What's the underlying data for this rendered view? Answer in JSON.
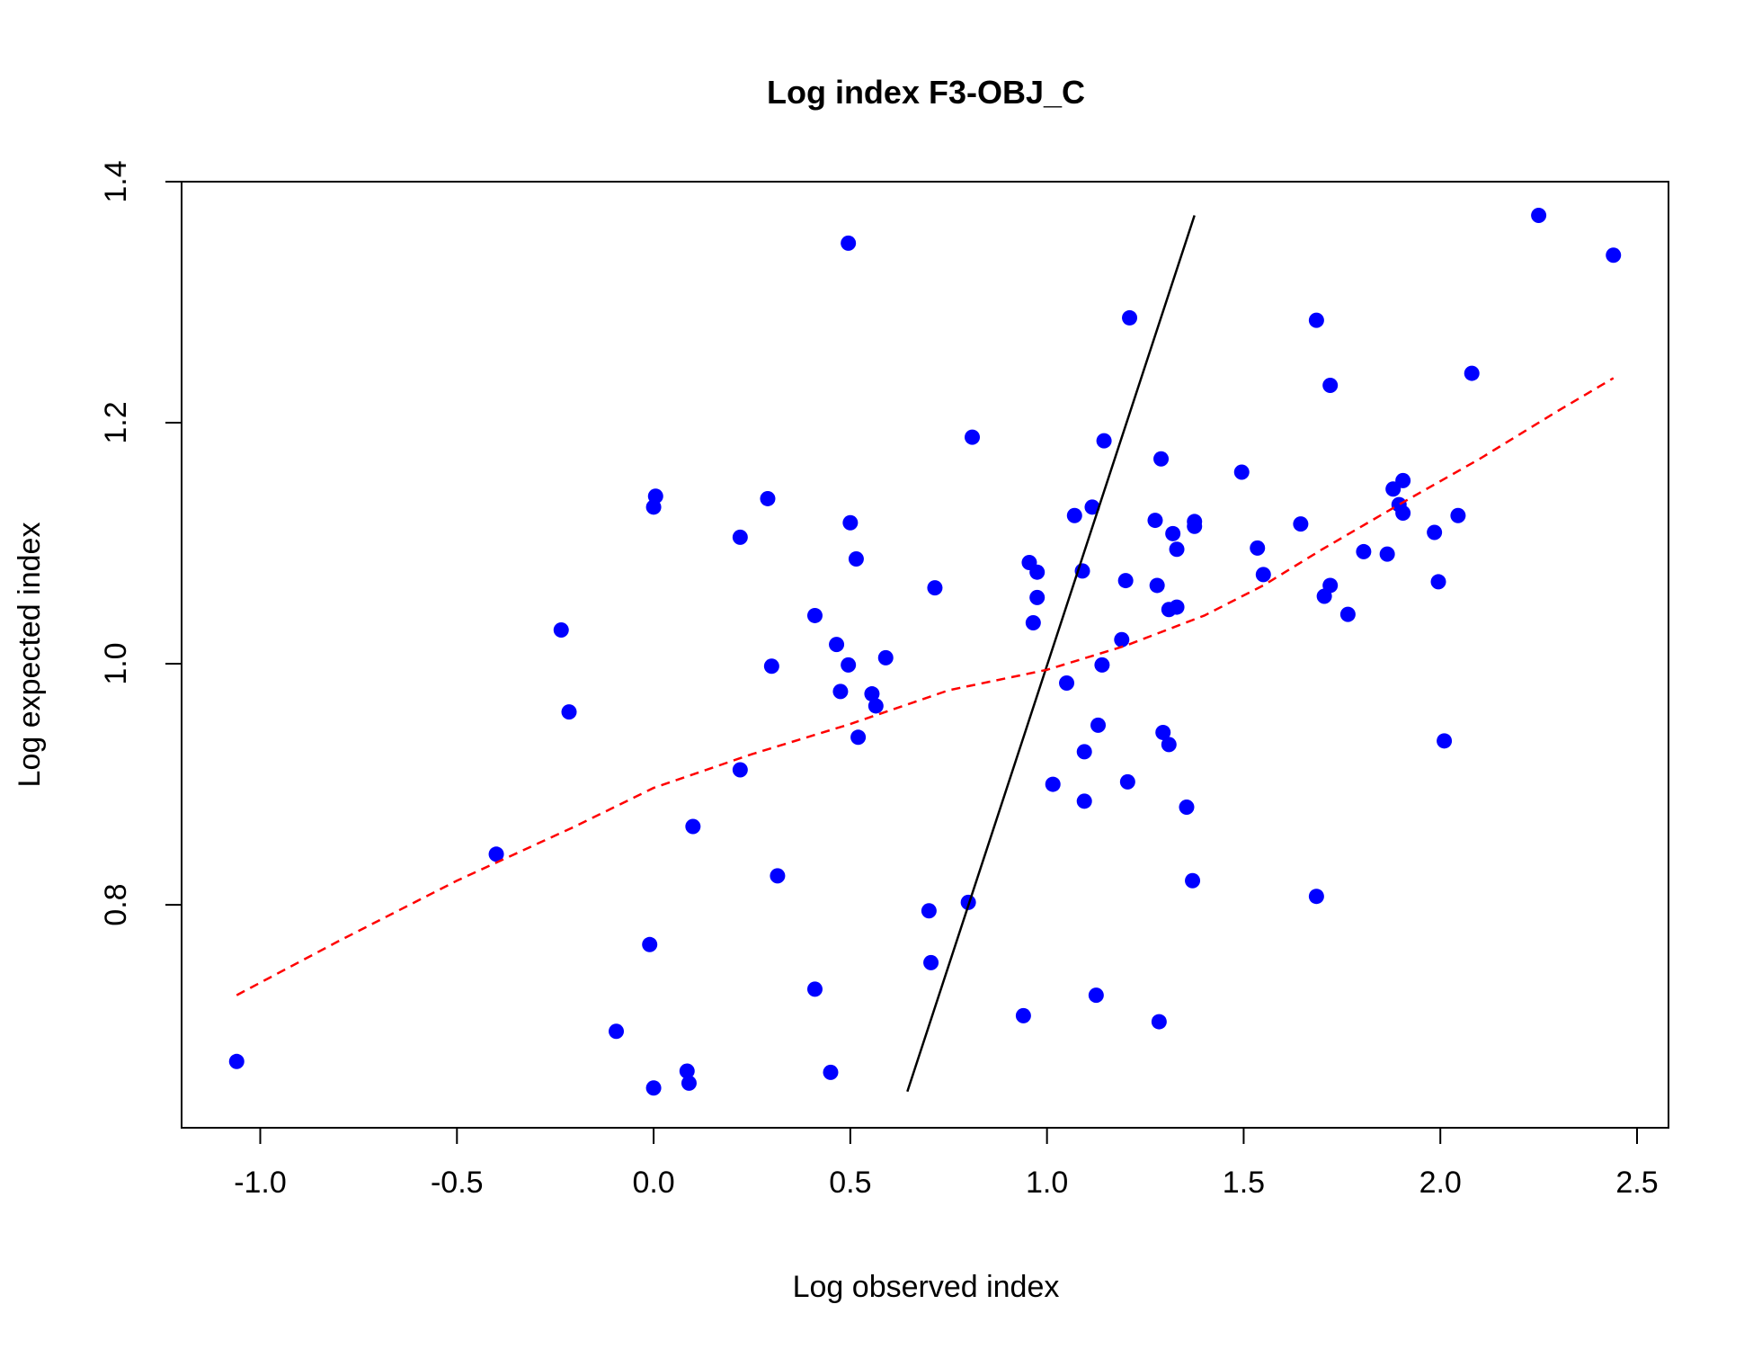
{
  "chart_data": {
    "type": "scatter",
    "title": "Log index F3-OBJ_C",
    "xlabel": "Log observed index",
    "ylabel": "Log expected index",
    "xlim": [
      -1.2,
      2.58
    ],
    "ylim": [
      0.615,
      1.4
    ],
    "x_ticks": [
      -1.0,
      -0.5,
      0.0,
      0.5,
      1.0,
      1.5,
      2.0,
      2.5
    ],
    "x_tick_labels": [
      "-1.0",
      "-0.5",
      "0.0",
      "0.5",
      "1.0",
      "1.5",
      "2.0",
      "2.5"
    ],
    "y_ticks": [
      0.8,
      1.0,
      1.2,
      1.4
    ],
    "y_tick_labels": [
      "0.8",
      "1.0",
      "1.2",
      "1.4"
    ],
    "grid": false,
    "point_color": "#0000ff",
    "points": [
      {
        "x": -1.06,
        "y": 0.67
      },
      {
        "x": -0.4,
        "y": 0.842
      },
      {
        "x": -0.235,
        "y": 1.028
      },
      {
        "x": -0.215,
        "y": 0.96
      },
      {
        "x": -0.095,
        "y": 0.695
      },
      {
        "x": -0.01,
        "y": 0.767
      },
      {
        "x": 0.0,
        "y": 1.13
      },
      {
        "x": 0.005,
        "y": 1.139
      },
      {
        "x": 0.0,
        "y": 0.648
      },
      {
        "x": 0.085,
        "y": 0.662
      },
      {
        "x": 0.09,
        "y": 0.652
      },
      {
        "x": 0.1,
        "y": 0.865
      },
      {
        "x": 0.22,
        "y": 1.105
      },
      {
        "x": 0.22,
        "y": 0.912
      },
      {
        "x": 0.29,
        "y": 1.137
      },
      {
        "x": 0.3,
        "y": 0.998
      },
      {
        "x": 0.315,
        "y": 0.824
      },
      {
        "x": 0.41,
        "y": 1.04
      },
      {
        "x": 0.41,
        "y": 0.73
      },
      {
        "x": 0.45,
        "y": 0.661
      },
      {
        "x": 0.465,
        "y": 1.016
      },
      {
        "x": 0.475,
        "y": 0.977
      },
      {
        "x": 0.495,
        "y": 1.349
      },
      {
        "x": 0.495,
        "y": 0.999
      },
      {
        "x": 0.5,
        "y": 1.117
      },
      {
        "x": 0.515,
        "y": 1.087
      },
      {
        "x": 0.52,
        "y": 0.939
      },
      {
        "x": 0.555,
        "y": 0.975
      },
      {
        "x": 0.565,
        "y": 0.965
      },
      {
        "x": 0.59,
        "y": 1.005
      },
      {
        "x": 0.7,
        "y": 0.795
      },
      {
        "x": 0.705,
        "y": 0.752
      },
      {
        "x": 0.715,
        "y": 1.063
      },
      {
        "x": 0.8,
        "y": 0.802
      },
      {
        "x": 0.81,
        "y": 1.188
      },
      {
        "x": 0.94,
        "y": 0.708
      },
      {
        "x": 0.955,
        "y": 1.084
      },
      {
        "x": 0.965,
        "y": 1.034
      },
      {
        "x": 0.975,
        "y": 1.076
      },
      {
        "x": 0.975,
        "y": 1.055
      },
      {
        "x": 1.015,
        "y": 0.9
      },
      {
        "x": 1.05,
        "y": 0.984
      },
      {
        "x": 1.07,
        "y": 1.123
      },
      {
        "x": 1.09,
        "y": 1.077
      },
      {
        "x": 1.095,
        "y": 0.927
      },
      {
        "x": 1.095,
        "y": 0.886
      },
      {
        "x": 1.115,
        "y": 1.13
      },
      {
        "x": 1.125,
        "y": 0.725
      },
      {
        "x": 1.13,
        "y": 0.949
      },
      {
        "x": 1.14,
        "y": 0.999
      },
      {
        "x": 1.145,
        "y": 1.185
      },
      {
        "x": 1.19,
        "y": 1.02
      },
      {
        "x": 1.2,
        "y": 1.069
      },
      {
        "x": 1.205,
        "y": 0.902
      },
      {
        "x": 1.21,
        "y": 1.287
      },
      {
        "x": 1.275,
        "y": 1.119
      },
      {
        "x": 1.28,
        "y": 1.065
      },
      {
        "x": 1.285,
        "y": 0.703
      },
      {
        "x": 1.29,
        "y": 1.17
      },
      {
        "x": 1.295,
        "y": 0.943
      },
      {
        "x": 1.31,
        "y": 0.933
      },
      {
        "x": 1.31,
        "y": 1.045
      },
      {
        "x": 1.32,
        "y": 1.108
      },
      {
        "x": 1.33,
        "y": 1.047
      },
      {
        "x": 1.33,
        "y": 1.095
      },
      {
        "x": 1.355,
        "y": 0.881
      },
      {
        "x": 1.37,
        "y": 0.82
      },
      {
        "x": 1.375,
        "y": 1.114
      },
      {
        "x": 1.375,
        "y": 1.118
      },
      {
        "x": 1.495,
        "y": 1.159
      },
      {
        "x": 1.535,
        "y": 1.096
      },
      {
        "x": 1.55,
        "y": 1.074
      },
      {
        "x": 1.645,
        "y": 1.116
      },
      {
        "x": 1.685,
        "y": 1.285
      },
      {
        "x": 1.685,
        "y": 0.807
      },
      {
        "x": 1.705,
        "y": 1.056
      },
      {
        "x": 1.72,
        "y": 1.065
      },
      {
        "x": 1.72,
        "y": 1.231
      },
      {
        "x": 1.765,
        "y": 1.041
      },
      {
        "x": 1.805,
        "y": 1.093
      },
      {
        "x": 1.865,
        "y": 1.091
      },
      {
        "x": 1.88,
        "y": 1.145
      },
      {
        "x": 1.895,
        "y": 1.132
      },
      {
        "x": 1.905,
        "y": 1.152
      },
      {
        "x": 1.905,
        "y": 1.125
      },
      {
        "x": 1.985,
        "y": 1.109
      },
      {
        "x": 1.995,
        "y": 1.068
      },
      {
        "x": 2.01,
        "y": 0.936
      },
      {
        "x": 2.045,
        "y": 1.123
      },
      {
        "x": 2.08,
        "y": 1.241
      },
      {
        "x": 2.25,
        "y": 1.372
      },
      {
        "x": 2.44,
        "y": 1.339
      }
    ],
    "solid_line": {
      "color": "#000000",
      "points": [
        {
          "x": 0.645,
          "y": 0.645
        },
        {
          "x": 1.375,
          "y": 1.372
        }
      ]
    },
    "dashed_line": {
      "color": "#ff0000",
      "points": [
        {
          "x": -1.06,
          "y": 0.725
        },
        {
          "x": -0.8,
          "y": 0.77
        },
        {
          "x": -0.5,
          "y": 0.82
        },
        {
          "x": -0.2,
          "y": 0.865
        },
        {
          "x": 0.0,
          "y": 0.897
        },
        {
          "x": 0.25,
          "y": 0.925
        },
        {
          "x": 0.5,
          "y": 0.95
        },
        {
          "x": 0.75,
          "y": 0.978
        },
        {
          "x": 1.0,
          "y": 0.995
        },
        {
          "x": 1.2,
          "y": 1.015
        },
        {
          "x": 1.4,
          "y": 1.04
        },
        {
          "x": 1.55,
          "y": 1.065
        },
        {
          "x": 1.7,
          "y": 1.095
        },
        {
          "x": 1.9,
          "y": 1.133
        },
        {
          "x": 2.1,
          "y": 1.17
        },
        {
          "x": 2.3,
          "y": 1.21
        },
        {
          "x": 2.44,
          "y": 1.237
        }
      ]
    }
  }
}
